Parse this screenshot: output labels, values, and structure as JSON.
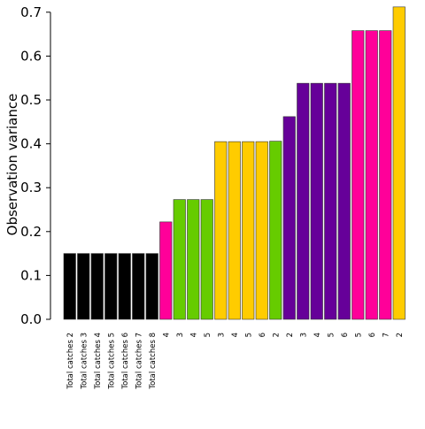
{
  "chart_data": {
    "type": "bar",
    "title": "",
    "xlabel": "",
    "ylabel": "Observation variance",
    "ylim": [
      0,
      0.72
    ],
    "yticks": [
      "0.0",
      "0.1",
      "0.2",
      "0.3",
      "0.4",
      "0.5",
      "0.6",
      "0.7"
    ],
    "ytick_values": [
      0,
      0.1,
      0.2,
      0.3,
      0.4,
      0.5,
      0.6,
      0.7
    ],
    "grid": false,
    "categories": [
      "Total catches 2",
      "Total catches 3",
      "Total catches 4",
      "Total catches 5",
      "Total catches 6",
      "Total catches 7",
      "Total catches 8",
      "4",
      "3",
      "4",
      "5",
      "3",
      "4",
      "5",
      "6",
      "2",
      "2",
      "3",
      "4",
      "5",
      "6",
      "5",
      "6",
      "7",
      "2"
    ],
    "values": [
      0.15,
      0.15,
      0.15,
      0.15,
      0.15,
      0.15,
      0.15,
      0.222,
      0.273,
      0.273,
      0.273,
      0.405,
      0.405,
      0.405,
      0.405,
      0.406,
      0.462,
      0.538,
      0.538,
      0.538,
      0.538,
      0.658,
      0.658,
      0.658,
      0.712
    ],
    "colors": [
      "#000000",
      "#000000",
      "#000000",
      "#000000",
      "#000000",
      "#000000",
      "#000000",
      "#ff0099",
      "#66cc00",
      "#66cc00",
      "#66cc00",
      "#ffcc00",
      "#ffcc00",
      "#ffcc00",
      "#ffcc00",
      "#66cc00",
      "#660099",
      "#660099",
      "#660099",
      "#660099",
      "#660099",
      "#ff0099",
      "#ff0099",
      "#ff0099",
      "#ffcc00"
    ]
  }
}
